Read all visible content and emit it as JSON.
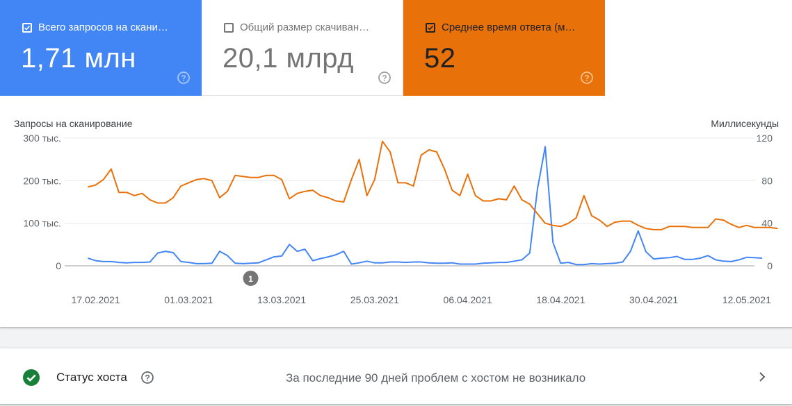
{
  "metrics": [
    {
      "label": "Всего запросов на скани…",
      "value": "1,71 млн",
      "checked": true,
      "color": "#4285f4"
    },
    {
      "label": "Общий размер скачиван…",
      "value": "20,1 млрд",
      "checked": false,
      "color": "#ffffff"
    },
    {
      "label": "Среднее время ответа (м…",
      "value": "52",
      "checked": true,
      "color": "#e8710a"
    }
  ],
  "host_status": {
    "title": "Статус хоста",
    "message": "За последние 90 дней проблем с хостом не возникало",
    "status_color": "#188038"
  },
  "chart_data": {
    "type": "line",
    "left_axis_title": "Запросы на сканирование",
    "right_axis_title": "Миллисекунды",
    "left_ticks": [
      "300 тыс.",
      "200 тыс.",
      "100 тыс.",
      "0"
    ],
    "right_ticks": [
      "120",
      "80",
      "40",
      "0"
    ],
    "ylim_left": [
      0,
      300000
    ],
    "ylim_right": [
      0,
      120
    ],
    "grid": true,
    "x_tick_labels": [
      "17.02.2021",
      "01.03.2021",
      "13.03.2021",
      "25.03.2021",
      "06.04.2021",
      "18.04.2021",
      "30.04.2021",
      "12.05.2021"
    ],
    "x_start": "2021-02-13",
    "x_end": "2021-05-13",
    "annotation": {
      "label": "1",
      "date": "2021-03-09"
    },
    "series": [
      {
        "axis": "left",
        "color": "#4285f4",
        "values": [
          18000,
          12000,
          10000,
          10000,
          8000,
          7000,
          8000,
          8000,
          9000,
          30000,
          34000,
          31000,
          10000,
          8000,
          5000,
          5000,
          6000,
          34000,
          24000,
          6000,
          5000,
          6000,
          7000,
          14000,
          21000,
          23000,
          50000,
          34000,
          39000,
          12000,
          17000,
          21000,
          26000,
          34000,
          4000,
          7000,
          11000,
          7000,
          7000,
          9000,
          9000,
          8000,
          9000,
          9000,
          7000,
          6000,
          6000,
          7000,
          4000,
          4000,
          4000,
          6000,
          7000,
          8000,
          8000,
          11000,
          14000,
          30000,
          180000,
          280000,
          55000,
          6000,
          8000,
          3000,
          3000,
          5000,
          4000,
          5000,
          6000,
          9000,
          34000,
          82000,
          33000,
          16000,
          18000,
          19000,
          22000,
          15000,
          15000,
          18000,
          24000,
          14000,
          11000,
          10000,
          14000,
          20000,
          19000,
          18000
        ],
        "start": "2021-02-16"
      },
      {
        "axis": "right",
        "color": "#e8710a",
        "values": [
          74,
          76,
          81,
          91,
          69,
          69,
          66,
          68,
          62,
          59,
          59,
          64,
          75,
          78,
          81,
          82,
          80,
          64,
          70,
          85,
          84,
          83,
          83,
          85,
          85,
          81,
          63,
          68,
          70,
          71,
          66,
          64,
          61,
          60,
          81,
          100,
          66,
          81,
          117,
          107,
          78,
          78,
          75,
          104,
          109,
          107,
          91,
          71,
          66,
          86,
          66,
          61,
          61,
          63,
          62,
          75,
          62,
          58,
          49,
          40,
          38,
          37,
          40,
          45,
          66,
          47,
          43,
          37,
          41,
          42,
          42,
          38,
          35,
          34,
          34,
          37,
          37,
          37,
          36,
          36,
          36,
          44,
          43,
          39,
          36,
          38,
          36,
          36,
          36,
          35
        ],
        "start": "2021-02-16"
      }
    ]
  }
}
